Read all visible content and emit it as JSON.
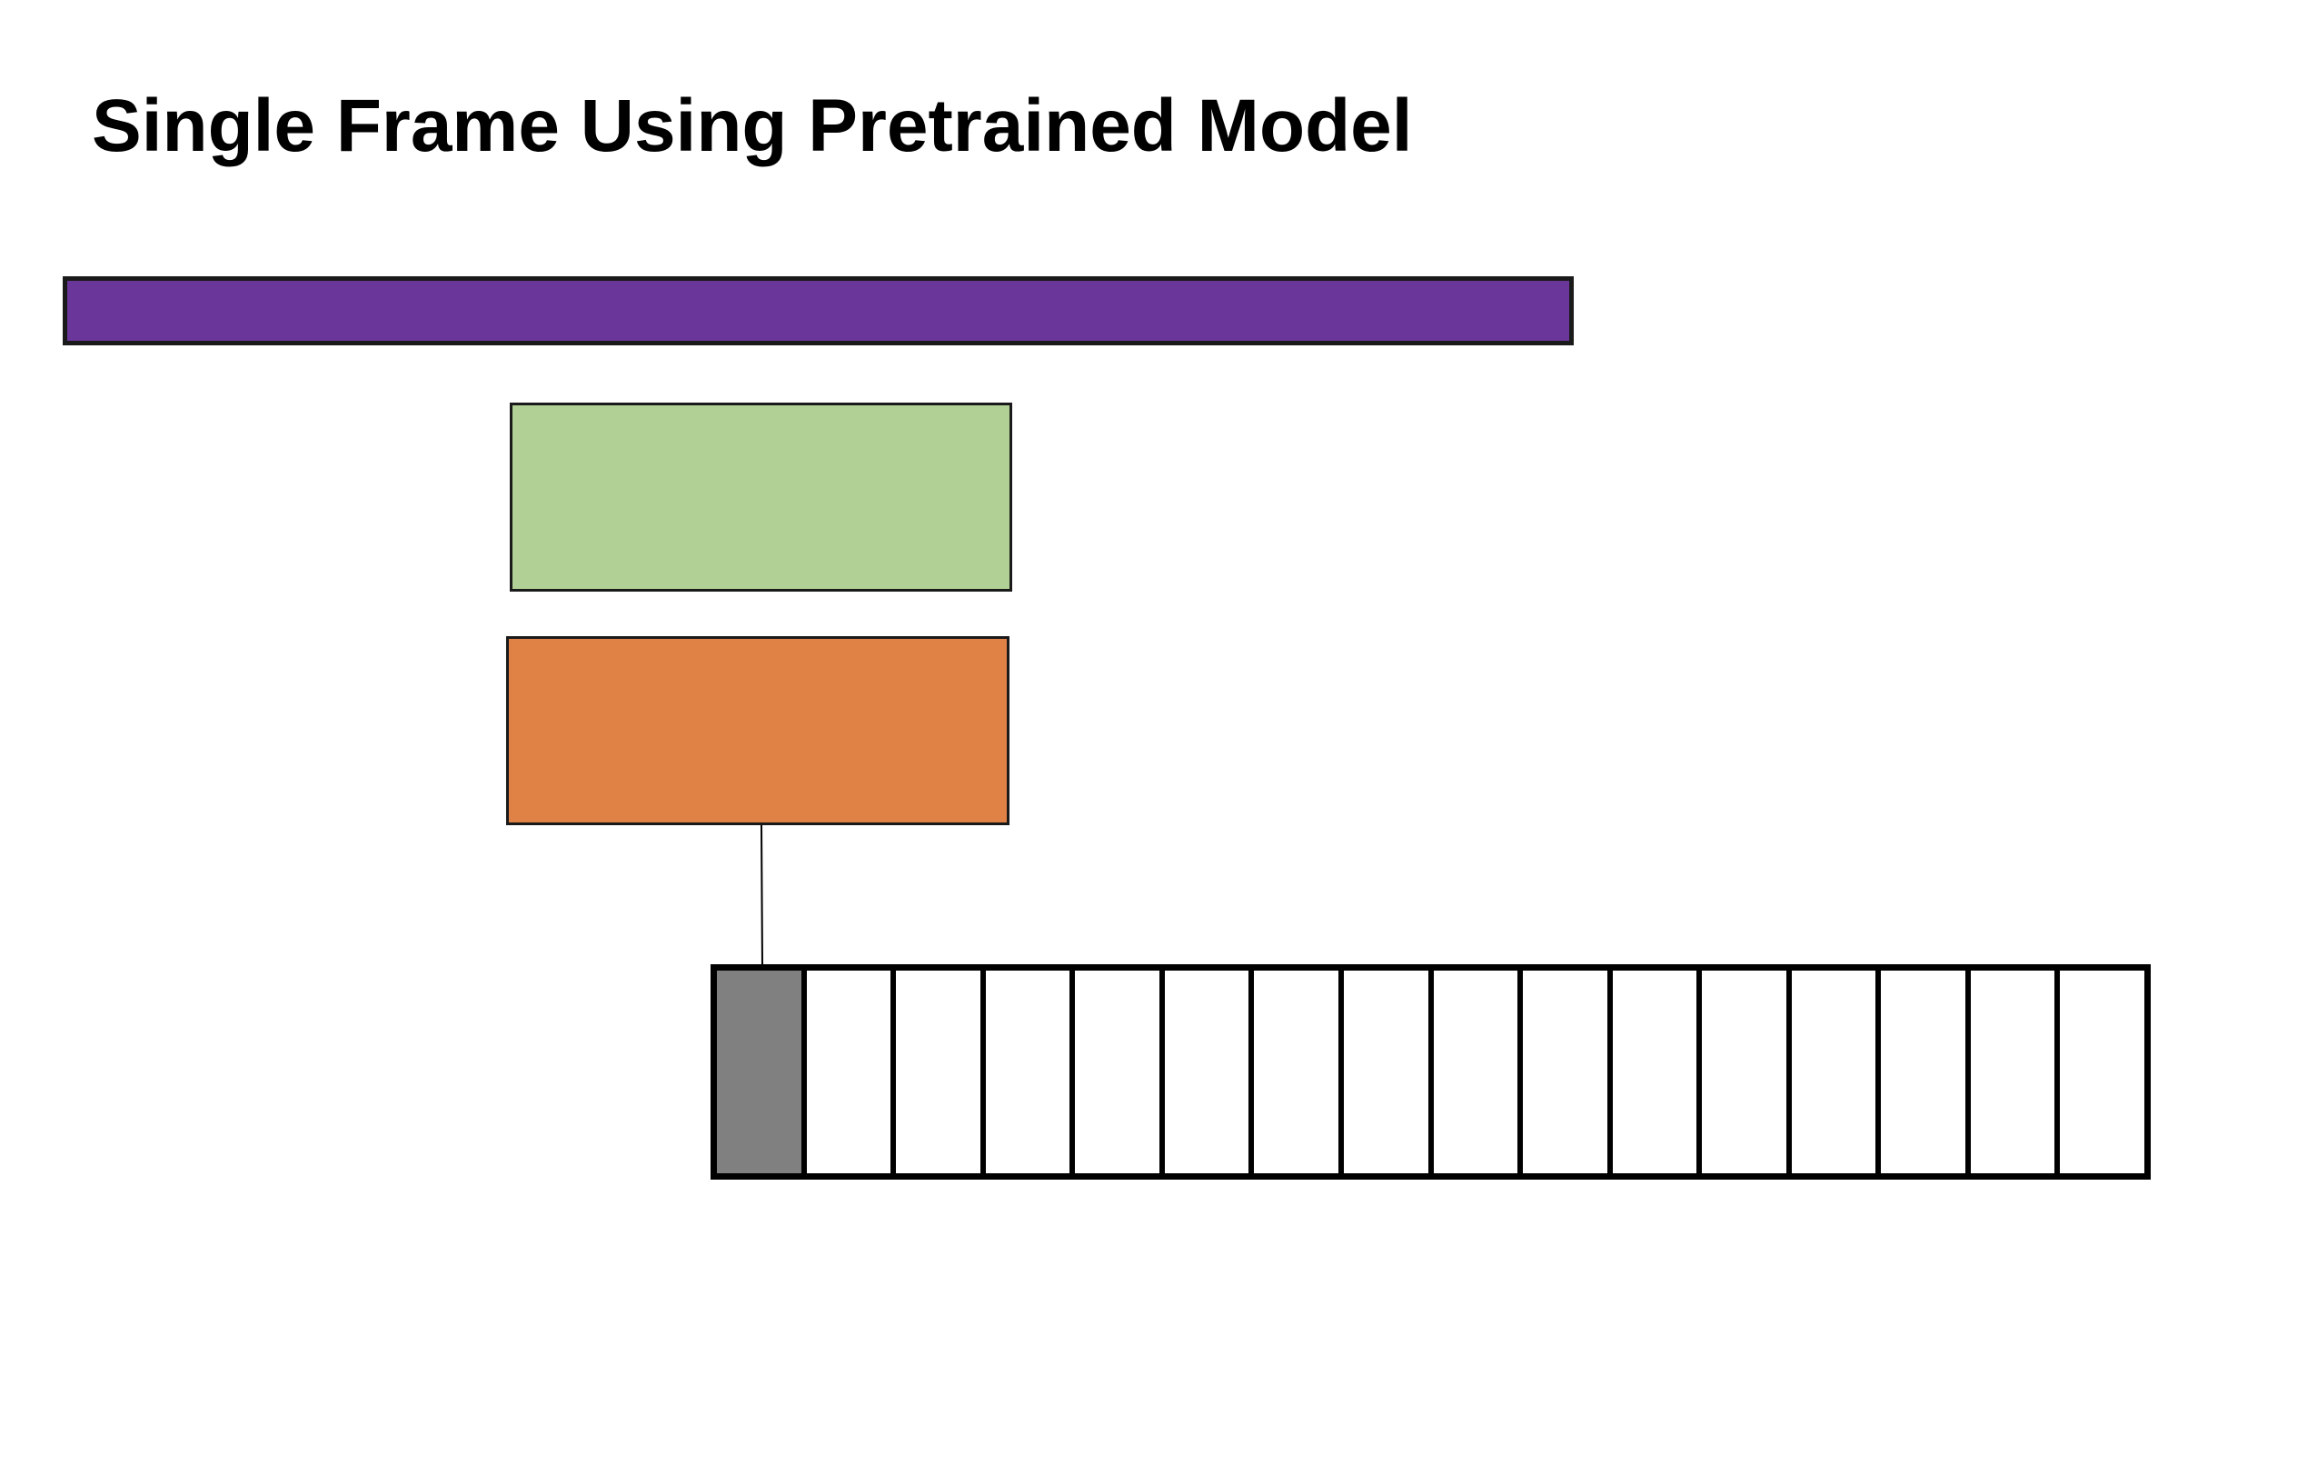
{
  "title": "Single Frame Using Pretrained Model",
  "colors": {
    "top_bar": "#6a3699",
    "green_box": "#b1d095",
    "orange_box": "#e08245",
    "selected_frame": "#808080",
    "outline": "#000000"
  },
  "frames": {
    "count": 16,
    "selected_index": 0
  }
}
